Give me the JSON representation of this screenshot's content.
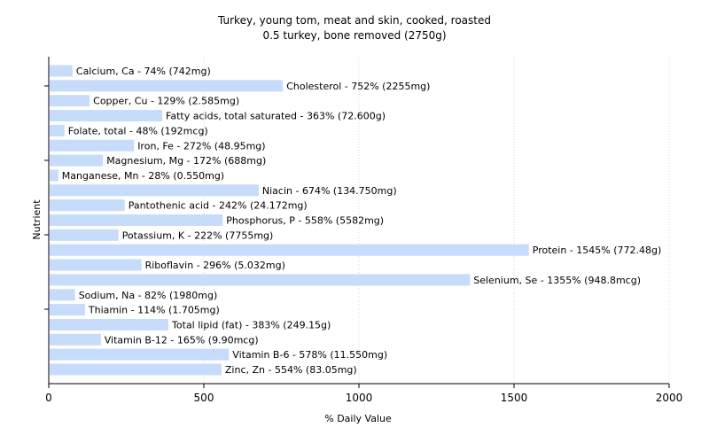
{
  "chart_data": {
    "type": "bar",
    "orientation": "horizontal",
    "title": "Turkey, young tom, meat and skin, cooked, roasted",
    "subtitle": "0.5 turkey, bone removed (2750g)",
    "xlabel": "% Daily Value",
    "ylabel": "Nutrient",
    "xlim": [
      0,
      2000
    ],
    "xticks": [
      0,
      500,
      1000,
      1500,
      2000
    ],
    "grid": true,
    "bar_color": "#c6dcfa",
    "categories": [
      "Calcium, Ca",
      "Cholesterol",
      "Copper, Cu",
      "Fatty acids, total saturated",
      "Folate, total",
      "Iron, Fe",
      "Magnesium, Mg",
      "Manganese, Mn",
      "Niacin",
      "Pantothenic acid",
      "Phosphorus, P",
      "Potassium, K",
      "Protein",
      "Riboflavin",
      "Selenium, Se",
      "Sodium, Na",
      "Thiamin",
      "Total lipid (fat)",
      "Vitamin B-12",
      "Vitamin B-6",
      "Zinc, Zn"
    ],
    "values": [
      74,
      752,
      129,
      363,
      48,
      272,
      172,
      28,
      674,
      242,
      558,
      222,
      1545,
      296,
      1355,
      82,
      114,
      383,
      165,
      578,
      554
    ],
    "labels": [
      "Calcium, Ca - 74% (742mg)",
      "Cholesterol - 752% (2255mg)",
      "Copper, Cu - 129% (2.585mg)",
      "Fatty acids, total saturated - 363% (72.600g)",
      "Folate, total - 48% (192mcg)",
      "Iron, Fe - 272% (48.95mg)",
      "Magnesium, Mg - 172% (688mg)",
      "Manganese, Mn - 28% (0.550mg)",
      "Niacin - 674% (134.750mg)",
      "Pantothenic acid - 242% (24.172mg)",
      "Phosphorus, P - 558% (5582mg)",
      "Potassium, K - 222% (7755mg)",
      "Protein - 1545% (772.48g)",
      "Riboflavin - 296% (5.032mg)",
      "Selenium, Se - 1355% (948.8mcg)",
      "Sodium, Na - 82% (1980mg)",
      "Thiamin - 114% (1.705mg)",
      "Total lipid (fat) - 383% (249.15g)",
      "Vitamin B-12 - 165% (9.90mcg)",
      "Vitamin B-6 - 578% (11.550mg)",
      "Zinc, Zn - 554% (83.05mg)"
    ]
  }
}
